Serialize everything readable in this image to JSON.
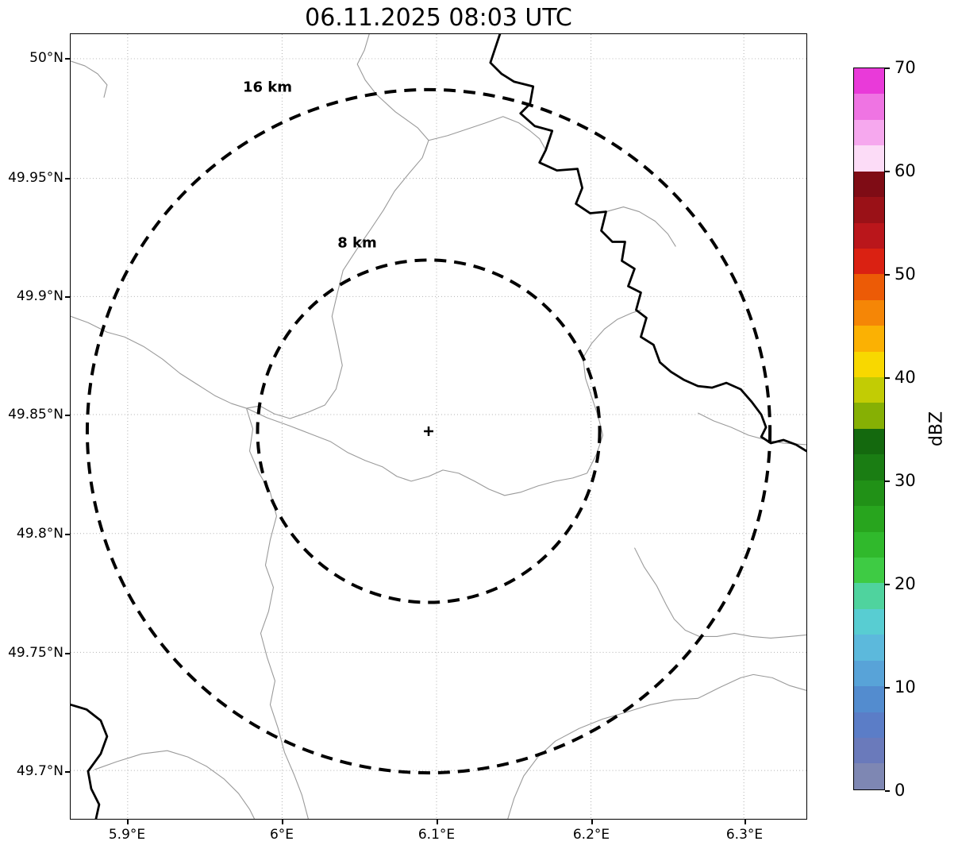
{
  "title": "06.11.2025 08:03 UTC",
  "map": {
    "rings": [
      {
        "label": "8 km",
        "radius_km": 8
      },
      {
        "label": "16 km",
        "radius_km": 16
      }
    ],
    "center_marker": "+",
    "axis": {
      "lat_ticks": [
        "50°N",
        "49.95°N",
        "49.9°N",
        "49.85°N",
        "49.8°N",
        "49.75°N",
        "49.7°N"
      ],
      "lon_ticks": [
        "5.9°E",
        "6°E",
        "6.1°E",
        "6.2°E",
        "6.3°E"
      ]
    }
  },
  "colorbar": {
    "label": "dBZ",
    "ticks": [
      "70",
      "60",
      "50",
      "40",
      "30",
      "20",
      "10",
      "0"
    ],
    "min": 0,
    "max": 70,
    "bands_top_to_bottom": [
      "#e93ad9",
      "#ef74e3",
      "#f6a8ee",
      "#fcdcf7",
      "#7f0c15",
      "#9a1117",
      "#ba161b",
      "#da2112",
      "#ec5b06",
      "#f58606",
      "#fbb103",
      "#f8d800",
      "#c2cc04",
      "#86b004",
      "#14690e",
      "#1a7d13",
      "#219117",
      "#28a51e",
      "#30b92c",
      "#3ecb44",
      "#4fd39e",
      "#58cdd2",
      "#5cb9dc",
      "#58a3d8",
      "#538ccf",
      "#5b7dc7",
      "#6a7abb",
      "#7e87b3"
    ]
  },
  "chart_data": {
    "type": "map",
    "title": "06.11.2025 08:03 UTC",
    "lon_range_deg_e": [
      5.86,
      6.34
    ],
    "lat_range_deg_n": [
      49.68,
      50.01
    ],
    "lat_gridlines": [
      50.0,
      49.95,
      49.9,
      49.85,
      49.8,
      49.75,
      49.7
    ],
    "lon_gridlines": [
      5.9,
      6.0,
      6.1,
      6.2,
      6.3
    ],
    "radar_site": {
      "lon_deg_e": 6.095,
      "lat_deg_n": 49.843
    },
    "range_rings_km": [
      8,
      16
    ],
    "colorbar": {
      "label": "dBZ",
      "min": 0,
      "max": 70,
      "tick_step": 10
    },
    "echoes": [],
    "grid": "dotted",
    "legend_position": "right-colorbar"
  }
}
